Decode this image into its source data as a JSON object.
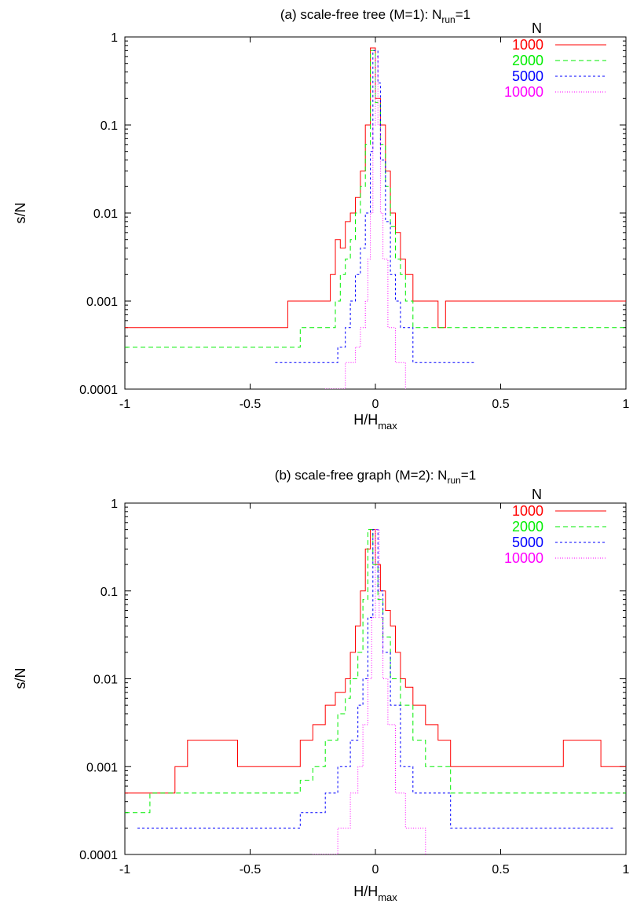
{
  "colors": {
    "series_1000": "#ff0000",
    "series_2000": "#00ee00",
    "series_5000": "#0000ff",
    "series_10000": "#ff00ff"
  },
  "chart_data": [
    {
      "type": "line",
      "title_main": "(a) scale-free tree (M=1): N",
      "title_sub": "run",
      "title_tail": "=1",
      "xlabel_main": "H/H",
      "xlabel_sub": "max",
      "ylabel": "s/N",
      "xlim": [
        -1,
        1
      ],
      "ylim": [
        0.0001,
        1
      ],
      "yscale": "log",
      "xticks": [
        -1,
        -0.5,
        0,
        0.5,
        1
      ],
      "xtick_labels": [
        "-1",
        "-0.5",
        "0",
        "0.5",
        "1"
      ],
      "yticks": [
        0.0001,
        0.001,
        0.01,
        0.1,
        1
      ],
      "ytick_labels": [
        "0.0001",
        "0.001",
        "0.01",
        "0.1",
        "1"
      ],
      "legend_title": "N",
      "legend_position": "top-right",
      "series": [
        {
          "name": "1000",
          "color": "#ff0000",
          "dash": "",
          "points": [
            [
              -1,
              0.0005
            ],
            [
              -0.35,
              0.001
            ],
            [
              -0.33,
              0.001
            ],
            [
              -0.3,
              0.001
            ],
            [
              -0.25,
              0.001
            ],
            [
              -0.2,
              0.001
            ],
            [
              -0.18,
              0.002
            ],
            [
              -0.16,
              0.005
            ],
            [
              -0.14,
              0.004
            ],
            [
              -0.12,
              0.008
            ],
            [
              -0.1,
              0.01
            ],
            [
              -0.08,
              0.015
            ],
            [
              -0.06,
              0.03
            ],
            [
              -0.04,
              0.1
            ],
            [
              -0.02,
              0.75
            ],
            [
              0,
              0.2
            ],
            [
              0.02,
              0.1
            ],
            [
              0.04,
              0.03
            ],
            [
              0.06,
              0.01
            ],
            [
              0.08,
              0.006
            ],
            [
              0.1,
              0.003
            ],
            [
              0.12,
              0.002
            ],
            [
              0.15,
              0.001
            ],
            [
              0.2,
              0.001
            ],
            [
              0.25,
              0.0005
            ],
            [
              0.28,
              0.001
            ],
            [
              0.3,
              0.001
            ],
            [
              1,
              0.001
            ]
          ]
        },
        {
          "name": "2000",
          "color": "#00ee00",
          "dash": "6,4",
          "points": [
            [
              -1,
              0.0003
            ],
            [
              -0.3,
              0.0005
            ],
            [
              -0.25,
              0.0005
            ],
            [
              -0.2,
              0.0005
            ],
            [
              -0.16,
              0.001
            ],
            [
              -0.14,
              0.002
            ],
            [
              -0.12,
              0.003
            ],
            [
              -0.1,
              0.005
            ],
            [
              -0.08,
              0.01
            ],
            [
              -0.06,
              0.02
            ],
            [
              -0.04,
              0.06
            ],
            [
              -0.02,
              0.7
            ],
            [
              0,
              0.18
            ],
            [
              0.02,
              0.06
            ],
            [
              0.04,
              0.02
            ],
            [
              0.06,
              0.007
            ],
            [
              0.08,
              0.003
            ],
            [
              0.1,
              0.002
            ],
            [
              0.12,
              0.001
            ],
            [
              0.15,
              0.0005
            ],
            [
              0.2,
              0.0005
            ],
            [
              0.25,
              0.0005
            ],
            [
              0.35,
              0.0005
            ],
            [
              1,
              0.0005
            ]
          ]
        },
        {
          "name": "5000",
          "color": "#0000ff",
          "dash": "3,3",
          "points": [
            [
              -0.4,
              0.0002
            ],
            [
              -0.25,
              0.0002
            ],
            [
              -0.15,
              0.0003
            ],
            [
              -0.12,
              0.0005
            ],
            [
              -0.1,
              0.001
            ],
            [
              -0.08,
              0.002
            ],
            [
              -0.06,
              0.004
            ],
            [
              -0.04,
              0.01
            ],
            [
              -0.02,
              0.05
            ],
            [
              -0.01,
              0.7
            ],
            [
              0.01,
              0.3
            ],
            [
              0.02,
              0.04
            ],
            [
              0.04,
              0.008
            ],
            [
              0.06,
              0.002
            ],
            [
              0.08,
              0.001
            ],
            [
              0.1,
              0.0005
            ],
            [
              0.15,
              0.0002
            ],
            [
              0.25,
              0.0002
            ],
            [
              0.4,
              0.0002
            ]
          ]
        },
        {
          "name": "10000",
          "color": "#ff00ff",
          "dash": "1,2",
          "points": [
            [
              -0.2,
              0.0001
            ],
            [
              -0.12,
              0.0002
            ],
            [
              -0.08,
              0.0003
            ],
            [
              -0.06,
              0.0005
            ],
            [
              -0.04,
              0.001
            ],
            [
              -0.03,
              0.003
            ],
            [
              -0.02,
              0.01
            ],
            [
              -0.01,
              0.1
            ],
            [
              0,
              0.6
            ],
            [
              0.01,
              0.1
            ],
            [
              0.02,
              0.01
            ],
            [
              0.03,
              0.003
            ],
            [
              0.05,
              0.0005
            ],
            [
              0.08,
              0.0002
            ],
            [
              0.12,
              0.0001
            ]
          ]
        }
      ]
    },
    {
      "type": "line",
      "title_main": "(b) scale-free graph (M=2): N",
      "title_sub": "run",
      "title_tail": "=1",
      "xlabel_main": "H/H",
      "xlabel_sub": "max",
      "ylabel": "s/N",
      "xlim": [
        -1,
        1
      ],
      "ylim": [
        0.0001,
        1
      ],
      "yscale": "log",
      "xticks": [
        -1,
        -0.5,
        0,
        0.5,
        1
      ],
      "xtick_labels": [
        "-1",
        "-0.5",
        "0",
        "0.5",
        "1"
      ],
      "yticks": [
        0.0001,
        0.001,
        0.01,
        0.1,
        1
      ],
      "ytick_labels": [
        "0.0001",
        "0.001",
        "0.01",
        "0.1",
        "1"
      ],
      "legend_title": "N",
      "legend_position": "top-right",
      "series": [
        {
          "name": "1000",
          "color": "#ff0000",
          "dash": "",
          "points": [
            [
              -1,
              0.0005
            ],
            [
              -0.8,
              0.001
            ],
            [
              -0.75,
              0.002
            ],
            [
              -0.55,
              0.001
            ],
            [
              -0.4,
              0.001
            ],
            [
              -0.3,
              0.002
            ],
            [
              -0.25,
              0.003
            ],
            [
              -0.2,
              0.005
            ],
            [
              -0.16,
              0.007
            ],
            [
              -0.12,
              0.01
            ],
            [
              -0.1,
              0.02
            ],
            [
              -0.08,
              0.04
            ],
            [
              -0.06,
              0.1
            ],
            [
              -0.04,
              0.3
            ],
            [
              -0.02,
              0.5
            ],
            [
              0,
              0.2
            ],
            [
              0.02,
              0.1
            ],
            [
              0.04,
              0.06
            ],
            [
              0.06,
              0.04
            ],
            [
              0.08,
              0.02
            ],
            [
              0.1,
              0.01
            ],
            [
              0.12,
              0.008
            ],
            [
              0.15,
              0.005
            ],
            [
              0.2,
              0.003
            ],
            [
              0.25,
              0.002
            ],
            [
              0.3,
              0.001
            ],
            [
              0.5,
              0.001
            ],
            [
              0.75,
              0.002
            ],
            [
              0.9,
              0.001
            ],
            [
              1,
              0.001
            ]
          ]
        },
        {
          "name": "2000",
          "color": "#00ee00",
          "dash": "6,4",
          "points": [
            [
              -1,
              0.0003
            ],
            [
              -0.9,
              0.0005
            ],
            [
              -0.7,
              0.0005
            ],
            [
              -0.3,
              0.0007
            ],
            [
              -0.25,
              0.001
            ],
            [
              -0.2,
              0.002
            ],
            [
              -0.15,
              0.004
            ],
            [
              -0.12,
              0.006
            ],
            [
              -0.1,
              0.01
            ],
            [
              -0.07,
              0.02
            ],
            [
              -0.05,
              0.08
            ],
            [
              -0.03,
              0.5
            ],
            [
              -0.01,
              0.2
            ],
            [
              0.01,
              0.08
            ],
            [
              0.03,
              0.03
            ],
            [
              0.06,
              0.01
            ],
            [
              0.1,
              0.005
            ],
            [
              0.15,
              0.002
            ],
            [
              0.2,
              0.001
            ],
            [
              0.3,
              0.0005
            ],
            [
              0.6,
              0.0005
            ],
            [
              0.9,
              0.0005
            ],
            [
              1,
              0.0005
            ]
          ]
        },
        {
          "name": "5000",
          "color": "#0000ff",
          "dash": "3,3",
          "points": [
            [
              -0.95,
              0.0002
            ],
            [
              -0.7,
              0.0002
            ],
            [
              -0.3,
              0.0003
            ],
            [
              -0.2,
              0.0005
            ],
            [
              -0.15,
              0.001
            ],
            [
              -0.1,
              0.002
            ],
            [
              -0.07,
              0.005
            ],
            [
              -0.05,
              0.01
            ],
            [
              -0.03,
              0.05
            ],
            [
              -0.01,
              0.5
            ],
            [
              0.01,
              0.1
            ],
            [
              0.03,
              0.02
            ],
            [
              0.06,
              0.005
            ],
            [
              0.1,
              0.001
            ],
            [
              0.15,
              0.0005
            ],
            [
              0.3,
              0.0002
            ],
            [
              0.7,
              0.0002
            ],
            [
              0.95,
              0.0002
            ]
          ]
        },
        {
          "name": "10000",
          "color": "#ff00ff",
          "dash": "1,2",
          "points": [
            [
              -0.25,
              0.0001
            ],
            [
              -0.15,
              0.0002
            ],
            [
              -0.1,
              0.0005
            ],
            [
              -0.07,
              0.001
            ],
            [
              -0.05,
              0.003
            ],
            [
              -0.03,
              0.01
            ],
            [
              -0.015,
              0.05
            ],
            [
              0,
              0.5
            ],
            [
              0.015,
              0.05
            ],
            [
              0.03,
              0.01
            ],
            [
              0.05,
              0.003
            ],
            [
              0.08,
              0.0005
            ],
            [
              0.12,
              0.0002
            ],
            [
              0.2,
              0.0001
            ]
          ]
        }
      ]
    }
  ]
}
